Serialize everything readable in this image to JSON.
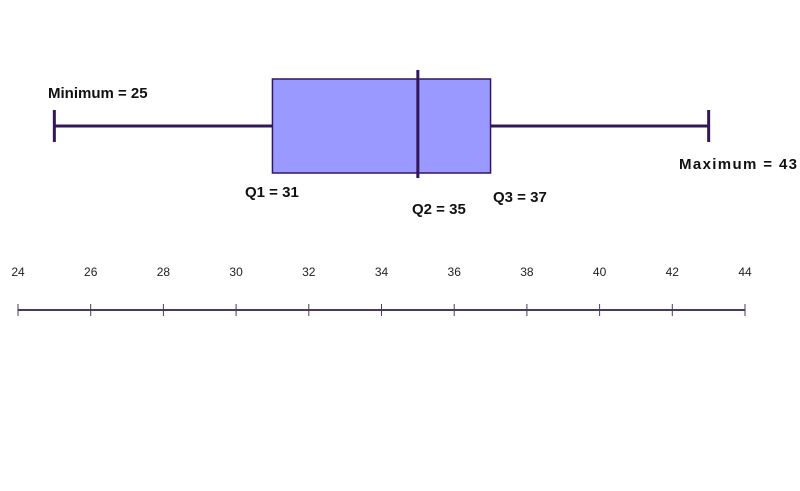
{
  "chart_data": {
    "type": "box",
    "stats": {
      "min": 25,
      "q1": 31,
      "median": 35,
      "q3": 37,
      "max": 43
    },
    "value_labels": {
      "min": "Minimum = 25",
      "q1": "Q1 = 31",
      "median": "Q2 = 35",
      "q3": "Q3 = 37",
      "max": "Maximum = 43"
    },
    "color": "#9999ff",
    "xlim": [
      24,
      44
    ],
    "xticks": [
      24,
      26,
      28,
      30,
      32,
      34,
      36,
      38,
      40,
      42,
      44
    ]
  }
}
